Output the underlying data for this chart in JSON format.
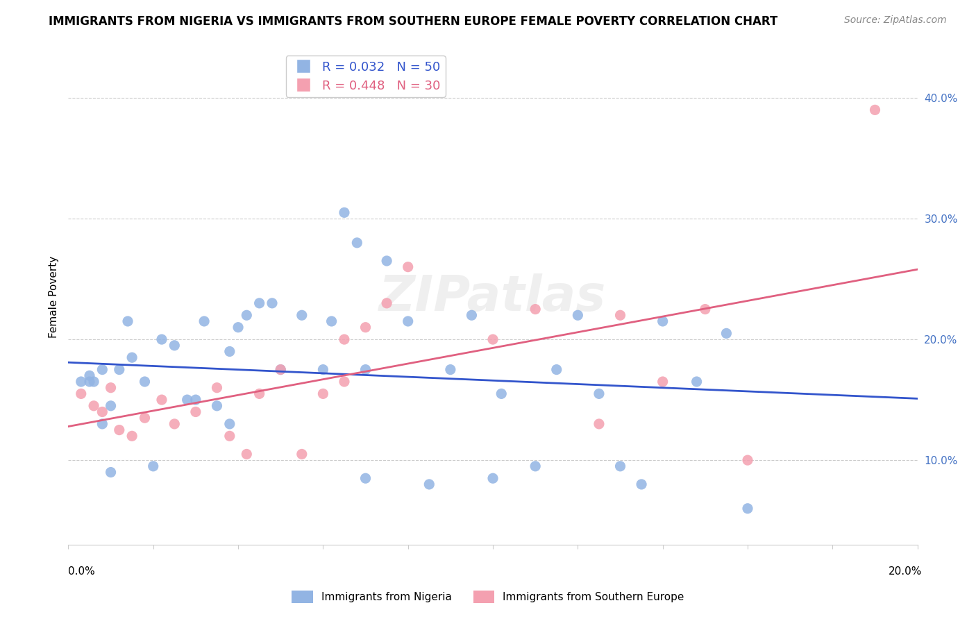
{
  "title": "IMMIGRANTS FROM NIGERIA VS IMMIGRANTS FROM SOUTHERN EUROPE FEMALE POVERTY CORRELATION CHART",
  "source": "Source: ZipAtlas.com",
  "ylabel": "Female Poverty",
  "right_yticks": [
    "10.0%",
    "20.0%",
    "30.0%",
    "40.0%"
  ],
  "right_ytick_vals": [
    0.1,
    0.2,
    0.3,
    0.4
  ],
  "xlim": [
    0.0,
    0.2
  ],
  "ylim": [
    0.03,
    0.44
  ],
  "nigeria_R": 0.032,
  "nigeria_N": 50,
  "s_europe_R": 0.448,
  "s_europe_N": 30,
  "nigeria_color": "#92b4e3",
  "s_europe_color": "#f4a0b0",
  "nigeria_line_color": "#3355cc",
  "s_europe_line_color": "#e06080",
  "legend_label1": "Immigrants from Nigeria",
  "legend_label2": "Immigrants from Southern Europe",
  "watermark": "ZIPatlas",
  "nigeria_x": [
    0.005,
    0.008,
    0.012,
    0.005,
    0.01,
    0.015,
    0.018,
    0.008,
    0.022,
    0.025,
    0.03,
    0.035,
    0.038,
    0.032,
    0.028,
    0.04,
    0.045,
    0.042,
    0.048,
    0.05,
    0.055,
    0.06,
    0.062,
    0.065,
    0.068,
    0.07,
    0.075,
    0.08,
    0.085,
    0.09,
    0.095,
    0.1,
    0.102,
    0.11,
    0.115,
    0.12,
    0.125,
    0.13,
    0.135,
    0.14,
    0.148,
    0.155,
    0.16,
    0.01,
    0.02,
    0.003,
    0.006,
    0.014,
    0.038,
    0.07
  ],
  "nigeria_y": [
    0.165,
    0.175,
    0.175,
    0.17,
    0.145,
    0.185,
    0.165,
    0.13,
    0.2,
    0.195,
    0.15,
    0.145,
    0.19,
    0.215,
    0.15,
    0.21,
    0.23,
    0.22,
    0.23,
    0.175,
    0.22,
    0.175,
    0.215,
    0.305,
    0.28,
    0.175,
    0.265,
    0.215,
    0.08,
    0.175,
    0.22,
    0.085,
    0.155,
    0.095,
    0.175,
    0.22,
    0.155,
    0.095,
    0.08,
    0.215,
    0.165,
    0.205,
    0.06,
    0.09,
    0.095,
    0.165,
    0.165,
    0.215,
    0.13,
    0.085
  ],
  "s_europe_x": [
    0.003,
    0.006,
    0.008,
    0.01,
    0.012,
    0.015,
    0.018,
    0.022,
    0.025,
    0.03,
    0.035,
    0.038,
    0.042,
    0.045,
    0.05,
    0.055,
    0.06,
    0.065,
    0.065,
    0.07,
    0.075,
    0.08,
    0.1,
    0.11,
    0.125,
    0.13,
    0.14,
    0.15,
    0.16,
    0.19
  ],
  "s_europe_y": [
    0.155,
    0.145,
    0.14,
    0.16,
    0.125,
    0.12,
    0.135,
    0.15,
    0.13,
    0.14,
    0.16,
    0.12,
    0.105,
    0.155,
    0.175,
    0.105,
    0.155,
    0.165,
    0.2,
    0.21,
    0.23,
    0.26,
    0.2,
    0.225,
    0.13,
    0.22,
    0.165,
    0.225,
    0.1,
    0.39
  ]
}
